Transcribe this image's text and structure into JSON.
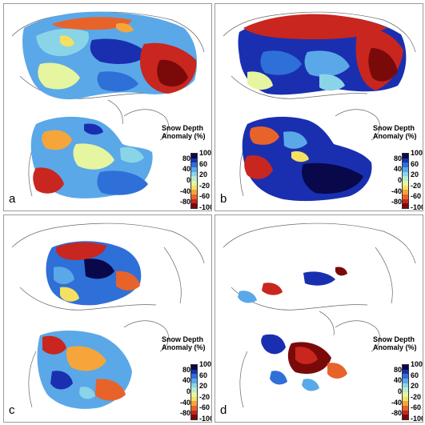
{
  "panels": [
    {
      "id": "a",
      "letter": "a"
    },
    {
      "id": "b",
      "letter": "b"
    },
    {
      "id": "c",
      "letter": "c"
    },
    {
      "id": "d",
      "letter": "d"
    }
  ],
  "legend": {
    "title_line1": "Snow Depth",
    "title_line2": "Anomaly (%)",
    "ticks_right": [
      "100",
      "60",
      "20",
      "-20",
      "-60",
      "-100"
    ],
    "ticks_left": [
      "80",
      "40",
      "0",
      "-40",
      "-80"
    ],
    "colors": [
      "#08084a",
      "#1a2fb0",
      "#2f6fd8",
      "#5aa8e8",
      "#8ad4e8",
      "#b8ecd0",
      "#e6f5a0",
      "#f6e060",
      "#f6a53a",
      "#e8632a",
      "#c8261e",
      "#7a0a0a"
    ]
  },
  "colors": {
    "deep_red": "#7a0a0a",
    "red": "#c8261e",
    "orange": "#f6a53a",
    "yellow": "#e6f5a0",
    "cyan": "#8ad4e8",
    "blue": "#2f6fd8",
    "navy": "#08084a",
    "coast": "#555555"
  }
}
